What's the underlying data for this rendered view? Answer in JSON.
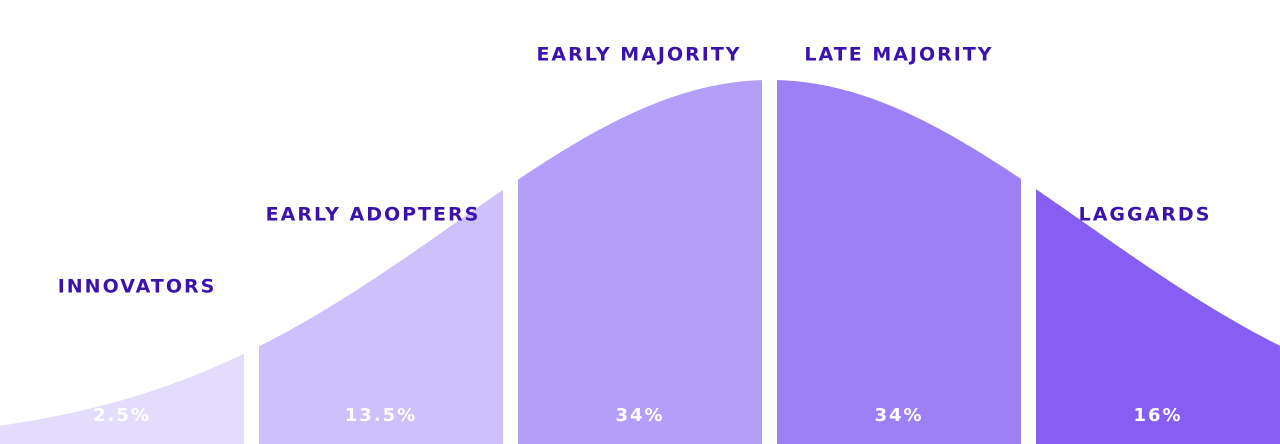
{
  "chart_data": {
    "type": "bell",
    "categories": [
      "INNOVATORS",
      "EARLY ADOPTERS",
      "EARLY MAJORITY",
      "LATE MAJORITY",
      "LAGGARDS"
    ],
    "values": [
      2.5,
      13.5,
      34,
      34,
      16
    ],
    "value_labels": [
      "2.5%",
      "13.5%",
      "34%",
      "34%",
      "16%"
    ],
    "colors": [
      "#e3dcfc",
      "#cdc0fb",
      "#b39ef9",
      "#9d7ff6",
      "#865ef3"
    ]
  }
}
